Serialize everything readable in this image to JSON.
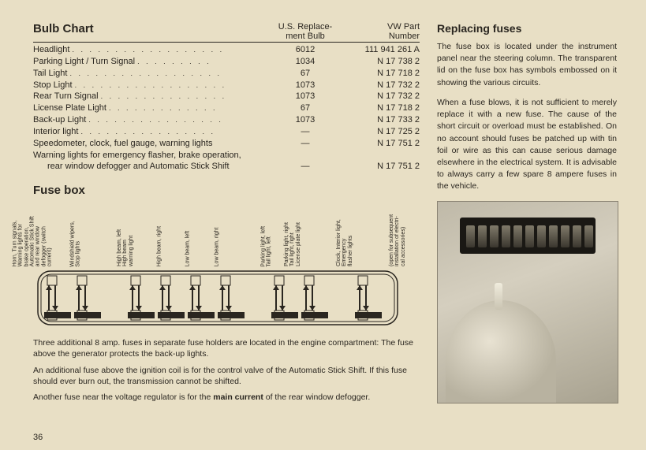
{
  "bulbChart": {
    "title": "Bulb Chart",
    "columns": {
      "c2a": "U.S. Replace-",
      "c2b": "ment Bulb",
      "c3a": "VW Part",
      "c3b": "Number"
    },
    "rows": [
      {
        "label": "Headlight",
        "us": "6012",
        "vw": "111 941 261 A"
      },
      {
        "label": "Parking Light / Turn Signal",
        "us": "1034",
        "vw": "N 17 738 2"
      },
      {
        "label": "Tail Light",
        "us": "67",
        "vw": "N 17 718 2"
      },
      {
        "label": "Stop Light",
        "us": "1073",
        "vw": "N 17 732 2"
      },
      {
        "label": "Rear Turn Signal",
        "us": "1073",
        "vw": "N 17 732 2"
      },
      {
        "label": "License Plate Light",
        "us": "67",
        "vw": "N 17 718 2"
      },
      {
        "label": "Back-up Light",
        "us": "1073",
        "vw": "N 17 733 2"
      },
      {
        "label": "Interior light",
        "us": "—",
        "vw": "N 17 725 2"
      },
      {
        "label": "Speedometer, clock, fuel gauge, warning lights",
        "us": "—",
        "vw": "N 17 751 2"
      },
      {
        "label": "Warning lights for emergency flasher, brake operation,",
        "us": "",
        "vw": ""
      },
      {
        "label": "rear window defogger and Automatic Stick Shift",
        "sub": true,
        "us": "—",
        "vw": "N 17 751 2"
      }
    ]
  },
  "fuseBox": {
    "title": "Fuse box",
    "labels": [
      "Horn, Turn signals,\nWarning lights for\nbrake operation,\nAutomatic Stick Shift\nand rear window\ndefogger (switch\ncurrent)",
      "Windshield wipers,\nStop lights",
      "High beam, left\nHigh beam\nwarning light",
      "High beam, right",
      "Low beam, left",
      "Low beam, right",
      "Parking light, left\nTail light, left",
      "Parking light, right\nTail light, right\nLicense plate light",
      "Clock, Interior light,\nEmergency\nflasher lights",
      "(open for subsequent\ninstallation of electri-\ncal accessories)"
    ],
    "notes": [
      "Three additional 8 amp. fuses in separate fuse holders are located in the engine compartment: The fuse above the generator protects the back-up lights.",
      "An additional fuse above the ignition coil is for the control valve of the Automatic Stick Shift. If this fuse should ever burn out, the transmission cannot be shifted.",
      "Another fuse near the voltage regulator is for the"
    ],
    "mainCurrent": "main current",
    "note3b": " of the rear window defogger."
  },
  "replacing": {
    "title": "Replacing fuses",
    "p1": "The fuse box is located under the instrument panel near the steering column. The transparent lid on the fuse box has symbols embossed on it showing the various circuits.",
    "p2": "When a fuse blows, it is not sufficient to merely replace it with a new fuse. The cause of the short circuit or overload must be established. On no account should fuses be patched up with tin foil or wire as this can cause serious damage elsewhere in the electrical system. It is advisable to always carry a few spare 8 ampere fuses in the vehicle."
  },
  "pageNumber": "36"
}
